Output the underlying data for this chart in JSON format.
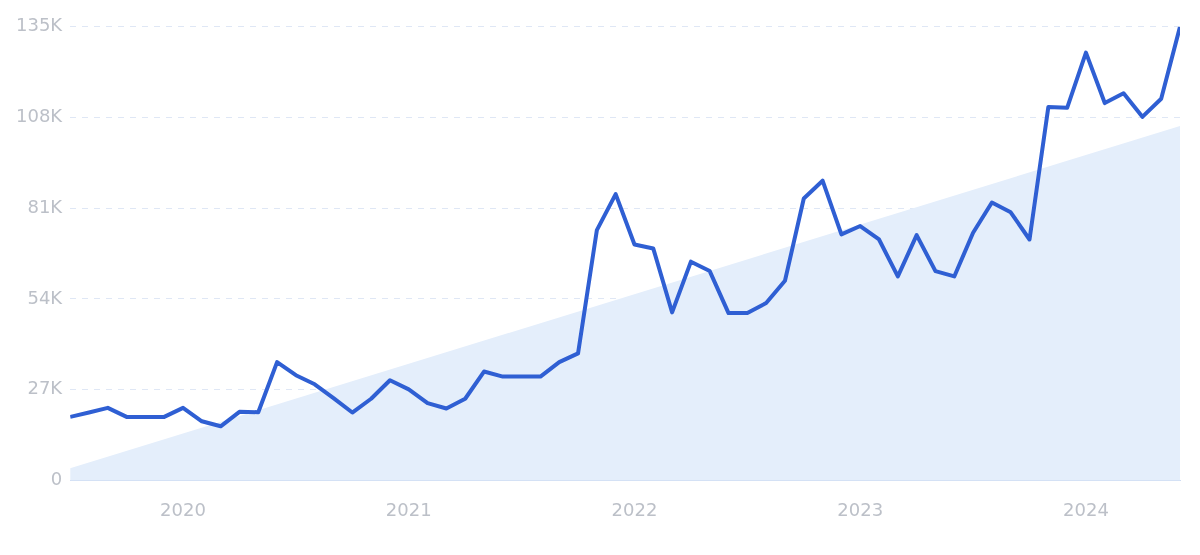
{
  "chart_data": {
    "type": "line",
    "xlim": [
      "2019-07",
      "2024-06"
    ],
    "xticks": [
      "2020",
      "2021",
      "2022",
      "2023",
      "2024"
    ],
    "ylim": [
      0,
      135000
    ],
    "yticks": [
      0,
      {
        "value": 27000,
        "label": "27K"
      },
      {
        "value": 54000,
        "label": "54K"
      },
      {
        "value": 81000,
        "label": "81K"
      },
      {
        "value": 108000,
        "label": "108K"
      },
      {
        "value": 135000,
        "label": "135K"
      }
    ],
    "grid": "y",
    "legend": false,
    "series": [
      {
        "color": "#2f5fd3",
        "x": [
          "2019-07",
          "2019-08",
          "2019-09",
          "2019-10",
          "2019-11",
          "2019-12",
          "2020-01",
          "2020-02",
          "2020-03",
          "2020-04",
          "2020-05",
          "2020-06",
          "2020-07",
          "2020-08",
          "2020-09",
          "2020-10",
          "2020-11",
          "2020-12",
          "2021-01",
          "2021-02",
          "2021-03",
          "2021-04",
          "2021-05",
          "2021-06",
          "2021-07",
          "2021-08",
          "2021-09",
          "2021-10",
          "2021-11",
          "2021-12",
          "2022-01",
          "2022-02",
          "2022-03",
          "2022-04",
          "2022-05",
          "2022-06",
          "2022-07",
          "2022-08",
          "2022-09",
          "2022-10",
          "2022-11",
          "2022-12",
          "2023-01",
          "2023-02",
          "2023-03",
          "2023-04",
          "2023-05",
          "2023-06",
          "2023-07",
          "2023-08",
          "2023-09",
          "2023-10",
          "2023-11",
          "2023-12",
          "2024-01",
          "2024-02",
          "2024-03",
          "2024-04",
          "2024-05",
          "2024-06"
        ],
        "values": [
          18900,
          20200,
          21600,
          18900,
          18900,
          18900,
          21600,
          17600,
          16100,
          20400,
          20300,
          35200,
          31300,
          28600,
          24500,
          20200,
          24300,
          29800,
          27100,
          23000,
          21400,
          24300,
          32400,
          30900,
          30900,
          30900,
          35200,
          37800,
          74500,
          85200,
          70200,
          69000,
          50000,
          65100,
          62300,
          49800,
          49800,
          52800,
          59400,
          83900,
          89200,
          73200,
          75700,
          71700,
          60700,
          73000,
          62300,
          60700,
          73700,
          82700,
          79800,
          71700,
          111100,
          110900,
          127300,
          112300,
          115200,
          108200,
          113600,
          135000
        ]
      },
      {
        "type": "area",
        "color": "#e4eefb",
        "x": [
          "2019-07",
          "2024-06"
        ],
        "values": [
          3600,
          105500
        ]
      }
    ]
  }
}
